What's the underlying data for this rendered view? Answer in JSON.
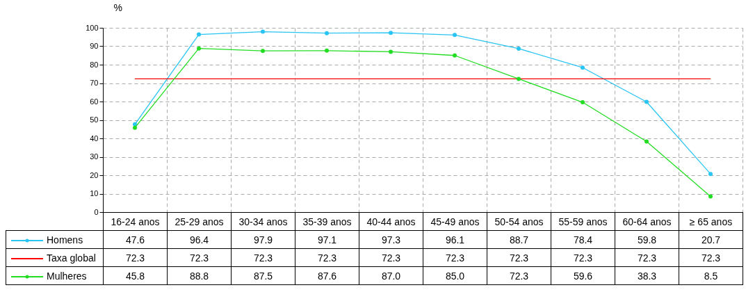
{
  "chart_data": {
    "type": "line",
    "ylabel": "%",
    "categories": [
      "16-24 anos",
      "25-29 anos",
      "30-34 anos",
      "35-39 anos",
      "40-44 anos",
      "45-49 anos",
      "50-54 anos",
      "55-59 anos",
      "60-64 anos",
      "≥ 65 anos"
    ],
    "series": [
      {
        "name": "Homens",
        "color": "#27c4f4",
        "values": [
          47.6,
          96.4,
          97.9,
          97.1,
          97.3,
          96.1,
          88.7,
          78.4,
          59.8,
          20.7
        ],
        "value_labels": [
          "47.6",
          "96.4",
          "97.9",
          "97.1",
          "97.3",
          "96.1",
          "88.7",
          "78.4",
          "59.8",
          "20.7"
        ]
      },
      {
        "name": "Taxa global",
        "color": "#ff0000",
        "marker": "none",
        "values": [
          72.3,
          72.3,
          72.3,
          72.3,
          72.3,
          72.3,
          72.3,
          72.3,
          72.3,
          72.3
        ],
        "value_labels": [
          "72.3",
          "72.3",
          "72.3",
          "72.3",
          "72.3",
          "72.3",
          "72.3",
          "72.3",
          "72.3",
          "72.3"
        ]
      },
      {
        "name": "Mulheres",
        "color": "#22dd22",
        "values": [
          45.8,
          88.8,
          87.5,
          87.6,
          87.0,
          85.0,
          72.3,
          59.6,
          38.3,
          8.5
        ],
        "value_labels": [
          "45.8",
          "88.8",
          "87.5",
          "87.6",
          "87.0",
          "85.0",
          "72.3",
          "59.6",
          "38.3",
          "8.5"
        ]
      }
    ],
    "ylim": [
      0,
      100
    ],
    "yticks": [
      0,
      10,
      20,
      30,
      40,
      50,
      60,
      70,
      80,
      90,
      100
    ],
    "grid": true,
    "marker": "circle",
    "legend": "bottom left"
  }
}
